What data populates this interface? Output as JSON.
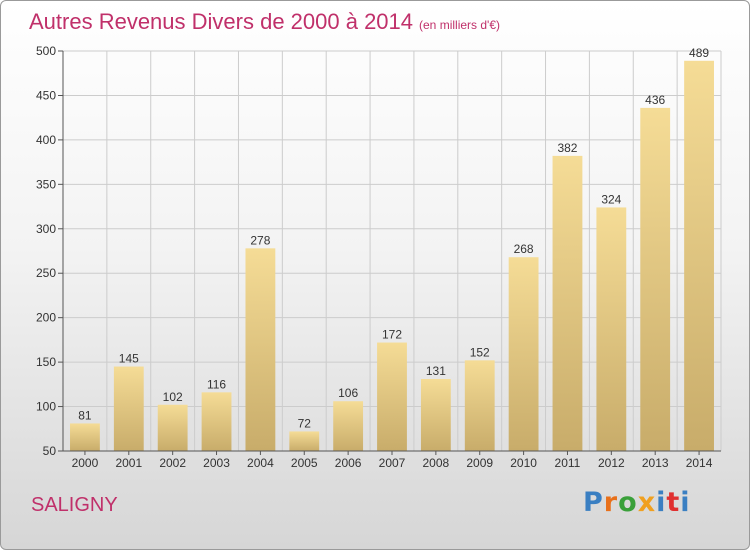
{
  "title": "Autres Revenus Divers de 2000 à 2014",
  "subtitle": "(en milliers d'€)",
  "location": "SALIGNY",
  "logo": {
    "text": "Proxiti",
    "letter_colors": [
      "#3a7fc2",
      "#e8701a",
      "#3aa03a",
      "#f0a020",
      "#3a7fc2",
      "#e03030",
      "#3a7fc2"
    ]
  },
  "colors": {
    "title": "#c0306a",
    "bar_top": "#f5dc96",
    "bar_bottom": "#c8ac6a",
    "grid": "#cccccc",
    "text": "#333333"
  },
  "chart_data": {
    "type": "bar",
    "categories": [
      "2000",
      "2001",
      "2002",
      "2003",
      "2004",
      "2005",
      "2006",
      "2007",
      "2008",
      "2009",
      "2010",
      "2011",
      "2012",
      "2013",
      "2014"
    ],
    "values": [
      81,
      145,
      102,
      116,
      278,
      72,
      106,
      172,
      131,
      152,
      268,
      382,
      324,
      436,
      489
    ],
    "ylim": [
      50,
      500
    ],
    "yticks": [
      50,
      100,
      150,
      200,
      250,
      300,
      350,
      400,
      450,
      500
    ],
    "grid": true,
    "data_labels": true
  }
}
